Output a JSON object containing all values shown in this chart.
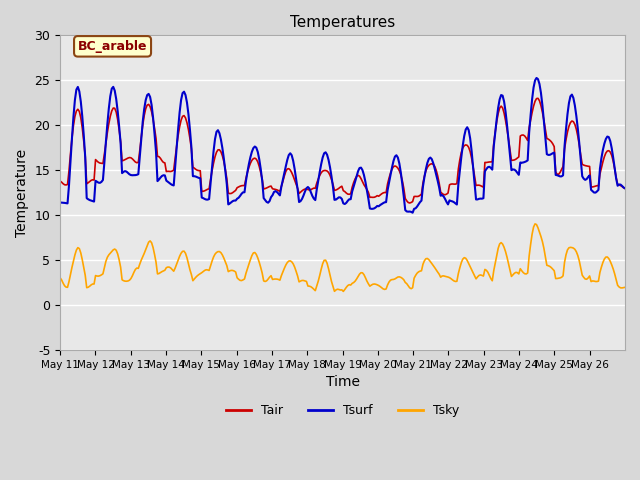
{
  "title": "Temperatures",
  "xlabel": "Time",
  "ylabel": "Temperature",
  "ylim": [
    -5,
    30
  ],
  "annotation_text": "BC_arable",
  "annotation_bg": "#ffffcc",
  "annotation_edge": "#8b4513",
  "annotation_text_color": "#8b0000",
  "tair_color": "#cc0000",
  "tsurf_color": "#0000cc",
  "tsky_color": "#ffa500",
  "legend_labels": [
    "Tair",
    "Tsurf",
    "Tsky"
  ],
  "x_tick_labels": [
    "May 11",
    "May 12",
    "May 13",
    "May 14",
    "May 15",
    "May 16",
    "May 17",
    "May 18",
    "May 19",
    "May 20",
    "May 21",
    "May 22",
    "May 23",
    "May 24",
    "May 25",
    "May 26"
  ],
  "n_days": 16,
  "pts_per_day": 24
}
